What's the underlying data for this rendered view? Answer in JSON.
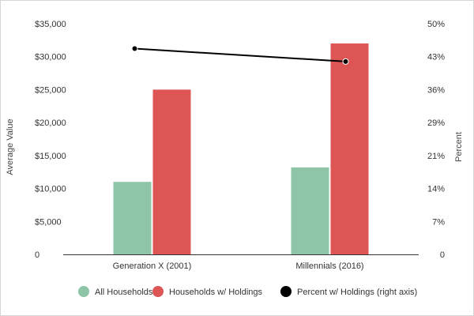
{
  "chart_data": {
    "type": "bar",
    "title": "",
    "categories": [
      "Generation X (2001)",
      "Millennials (2016)"
    ],
    "ylabel": "Average Value",
    "y2label": "Percent",
    "ylim": [
      0,
      35000
    ],
    "y2lim": [
      0,
      50
    ],
    "yticks": [
      "0",
      "$5,000",
      "$10,000",
      "$15,000",
      "$20,000",
      "$25,000",
      "$30,000",
      "$35,000"
    ],
    "y2ticks": [
      "0",
      "7%",
      "14%",
      "21%",
      "29%",
      "36%",
      "43%",
      "50%"
    ],
    "grid": false,
    "legend_position": "bottom",
    "series": [
      {
        "name": "All Households",
        "type": "bar",
        "axis": "left",
        "color": "#8dc5a6",
        "values": [
          11000,
          13200
        ]
      },
      {
        "name": "Households w/ Holdings",
        "type": "bar",
        "axis": "left",
        "color": "#de5555",
        "values": [
          25000,
          32000
        ]
      },
      {
        "name": "Percent w/ Holdings (right axis)",
        "type": "line",
        "axis": "right",
        "color": "#000000",
        "values": [
          44.6,
          41.8
        ]
      }
    ]
  }
}
